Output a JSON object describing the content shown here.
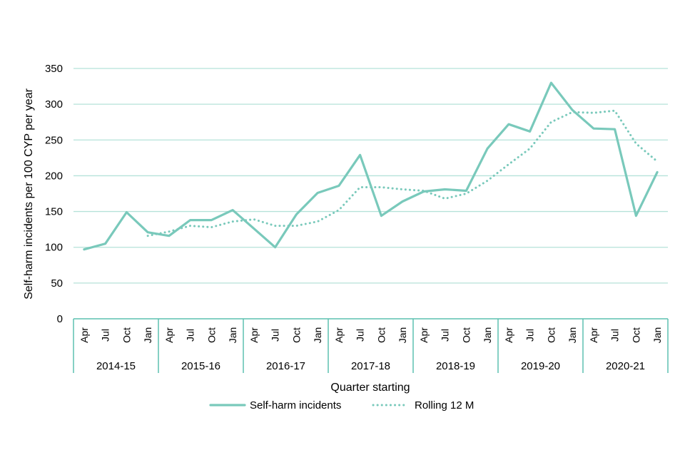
{
  "chart_data": {
    "type": "line",
    "title": "",
    "xlabel": "Quarter starting",
    "ylabel": "Self-harm incidents per 100 CYP per year",
    "ylim": [
      0,
      350
    ],
    "yticks": [
      0,
      50,
      100,
      150,
      200,
      250,
      300,
      350
    ],
    "grid": true,
    "legend_position": "bottom",
    "categories": [
      "Apr",
      "Jul",
      "Oct",
      "Jan",
      "Apr",
      "Jul",
      "Oct",
      "Jan",
      "Apr",
      "Jul",
      "Oct",
      "Jan",
      "Apr",
      "Jul",
      "Oct",
      "Jan",
      "Apr",
      "Jul",
      "Oct",
      "Jan",
      "Apr",
      "Jul",
      "Oct",
      "Jan",
      "Apr",
      "Jul",
      "Oct",
      "Jan"
    ],
    "groups": [
      {
        "label": "2014-15",
        "count": 4
      },
      {
        "label": "2015-16",
        "count": 4
      },
      {
        "label": "2016-17",
        "count": 4
      },
      {
        "label": "2017-18",
        "count": 4
      },
      {
        "label": "2018-19",
        "count": 4
      },
      {
        "label": "2019-20",
        "count": 4
      },
      {
        "label": "2020-21",
        "count": 4
      }
    ],
    "series": [
      {
        "name": "Self-harm incidents",
        "style": "solid",
        "color": "#79c9bb",
        "values": [
          97,
          105,
          149,
          121,
          116,
          138,
          138,
          152,
          126,
          100,
          146,
          176,
          186,
          229,
          144,
          164,
          178,
          181,
          179,
          238,
          272,
          262,
          330,
          292,
          266,
          265,
          144,
          205
        ]
      },
      {
        "name": "Rolling 12 M",
        "style": "dotted",
        "color": "#79c9bb",
        "values": [
          null,
          null,
          null,
          116,
          122,
          130,
          128,
          136,
          139,
          130,
          130,
          136,
          152,
          184,
          184,
          181,
          179,
          168,
          175,
          193,
          216,
          238,
          275,
          289,
          288,
          291,
          245,
          220
        ]
      }
    ]
  },
  "colors": {
    "axis": "#5cc0b0",
    "grid": "#b5e2d9",
    "line": "#79c9bb"
  }
}
